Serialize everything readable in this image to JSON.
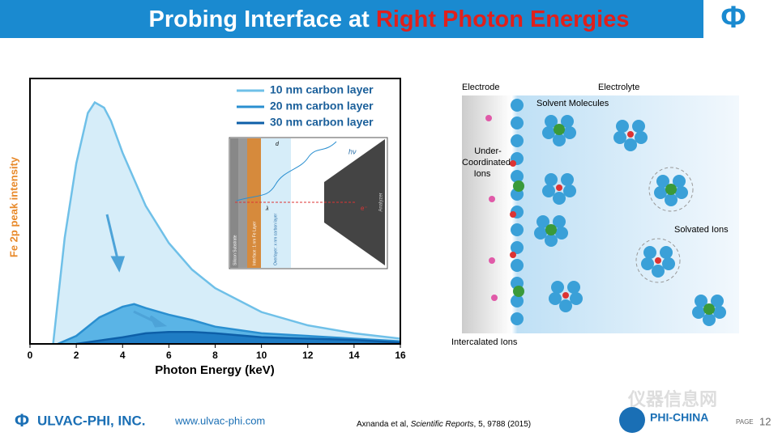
{
  "header": {
    "title": [
      "Probing Interface at ",
      "Right Photon Energies"
    ]
  },
  "chart_data": {
    "type": "area",
    "x_label": "Photon Energy (keV)",
    "y_label": "Fe 2p peak intensity",
    "xlim": [
      0,
      16
    ],
    "xticks": [
      0,
      2,
      4,
      6,
      8,
      10,
      12,
      14,
      16
    ],
    "ylim": [
      0,
      100
    ],
    "legend": "upper right",
    "series": [
      {
        "name": "10 nm carbon layer",
        "color": "#6fc0e8",
        "fill": "#d6edf9",
        "x": [
          1,
          1.5,
          2,
          2.5,
          2.8,
          3.2,
          3.5,
          4,
          5,
          6,
          7,
          8,
          10,
          12,
          14,
          16
        ],
        "values": [
          0,
          40,
          68,
          87,
          91,
          89,
          84,
          72,
          52,
          38,
          28,
          21,
          12,
          7,
          4,
          2
        ]
      },
      {
        "name": "20 nm carbon layer",
        "color": "#2a8fd0",
        "fill": "#5ab4e6",
        "x": [
          1.2,
          2,
          3,
          4,
          4.5,
          5,
          6,
          7,
          8,
          10,
          12,
          14,
          16
        ],
        "values": [
          0,
          3,
          10,
          14,
          15,
          13.5,
          11,
          9,
          6.5,
          4,
          3,
          2,
          1
        ]
      },
      {
        "name": "30 nm carbon layer",
        "color": "#0d5fa8",
        "fill": "#1f7cc4",
        "x": [
          2,
          4,
          5,
          6,
          7,
          8,
          10,
          12,
          14,
          16
        ],
        "values": [
          0,
          2.5,
          4,
          4.5,
          4.5,
          4,
          2.5,
          2,
          1.5,
          0.5
        ]
      }
    ]
  },
  "inset": {
    "hv": "hν",
    "d": "d",
    "lambda": "λ",
    "electron": "e⁻",
    "analyzer": "Analyzer",
    "layers": [
      "Silicon Substrate",
      "Interface: 1 nm Fe Layer",
      "Overlayer: x nm carbon layer"
    ]
  },
  "diagram": {
    "electrode": "Electrode",
    "electrolyte": "Electrolyte",
    "solvent": "Solvent Molecules",
    "under": [
      "Under-",
      "Coordinated",
      "Ions"
    ],
    "solvated": "Solvated Ions",
    "intercalated": "Intercalated Ions"
  },
  "footer": {
    "company": "ULVAC-PHI, INC.",
    "url": "www.ulvac-phi.com",
    "citation": [
      "Axnanda et al, ",
      "Scientific Reports",
      ", 5, 9788 (2015)"
    ],
    "brand": "PHI-CHINA",
    "page_label": "PAGE",
    "page": "12",
    "watermark": "仪器信息网"
  }
}
